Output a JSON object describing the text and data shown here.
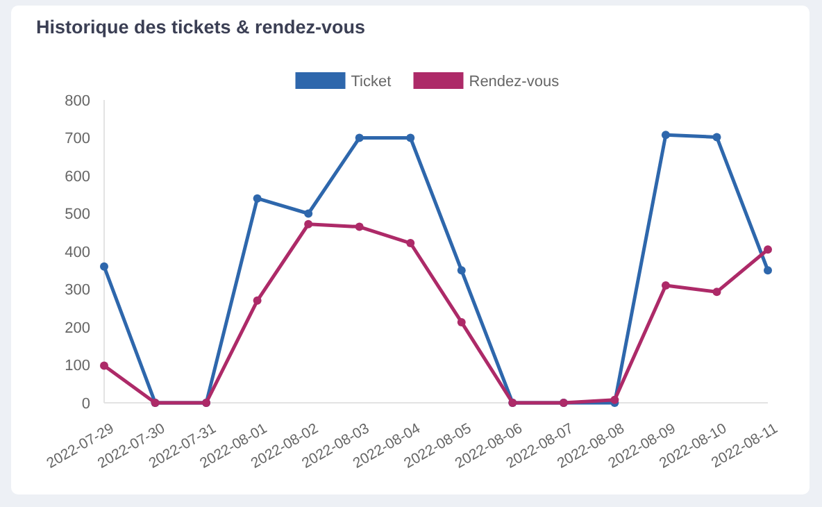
{
  "chart_data": {
    "type": "line",
    "title": "Historique des tickets & rendez-vous",
    "categories": [
      "2022-07-29",
      "2022-07-30",
      "2022-07-31",
      "2022-08-01",
      "2022-08-02",
      "2022-08-03",
      "2022-08-04",
      "2022-08-05",
      "2022-08-06",
      "2022-08-07",
      "2022-08-08",
      "2022-08-09",
      "2022-08-10",
      "2022-08-11"
    ],
    "series": [
      {
        "name": "Ticket",
        "color": "#2e67ac",
        "values": [
          360,
          0,
          0,
          540,
          500,
          700,
          700,
          350,
          0,
          0,
          0,
          708,
          702,
          350
        ]
      },
      {
        "name": "Rendez-vous",
        "color": "#ad2a68",
        "values": [
          98,
          0,
          0,
          270,
          472,
          465,
          422,
          213,
          0,
          0,
          8,
          310,
          293,
          405
        ]
      }
    ],
    "ylim": [
      0,
      800
    ],
    "yticks": [
      0,
      100,
      200,
      300,
      400,
      500,
      600,
      700,
      800
    ],
    "grid": false,
    "legend": "top",
    "marker": "circle",
    "line_style": "solid"
  }
}
